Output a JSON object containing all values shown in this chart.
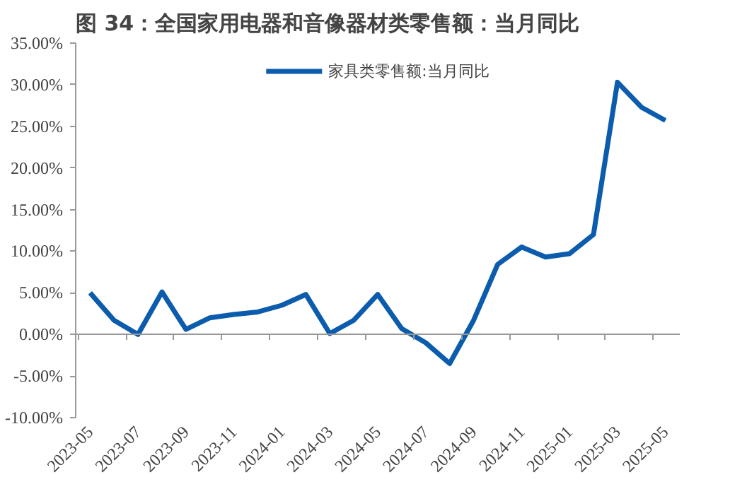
{
  "chart_data": {
    "type": "line",
    "title": "图 34：全国家用电器和音像器材类零售额：当月同比",
    "categories": [
      "2023-05",
      null,
      "2023-07",
      null,
      "2023-09",
      null,
      "2023-11",
      null,
      "2024-01",
      null,
      "2024-03",
      null,
      "2024-05",
      null,
      "2024-07",
      null,
      "2024-09",
      null,
      "2024-11",
      null,
      "2025-01",
      null,
      "2025-03",
      null,
      "2025-05"
    ],
    "series": [
      {
        "name": "家具类零售额:当月同比",
        "color": "#0b5cad",
        "values": [
          5.0,
          1.7,
          0.0,
          5.1,
          0.6,
          2.0,
          2.4,
          2.7,
          3.5,
          4.8,
          0.1,
          1.7,
          4.8,
          0.7,
          -1.0,
          -3.5,
          1.7,
          8.4,
          10.5,
          9.3,
          9.7,
          12.0,
          30.3,
          27.3,
          25.7
        ]
      }
    ],
    "ylim": [
      -10,
      35
    ],
    "yticks": [
      {
        "value": -10,
        "label": "-10.00%"
      },
      {
        "value": -5,
        "label": "-5.00%"
      },
      {
        "value": 0,
        "label": "0.00%"
      },
      {
        "value": 5,
        "label": "5.00%"
      },
      {
        "value": 10,
        "label": "10.00%"
      },
      {
        "value": 15,
        "label": "15.00%"
      },
      {
        "value": 20,
        "label": "20.00%"
      },
      {
        "value": 25,
        "label": "25.00%"
      },
      {
        "value": 30,
        "label": "30.00%"
      },
      {
        "value": 35,
        "label": "35.00%"
      }
    ],
    "legend": "top",
    "line_style": "solid"
  }
}
